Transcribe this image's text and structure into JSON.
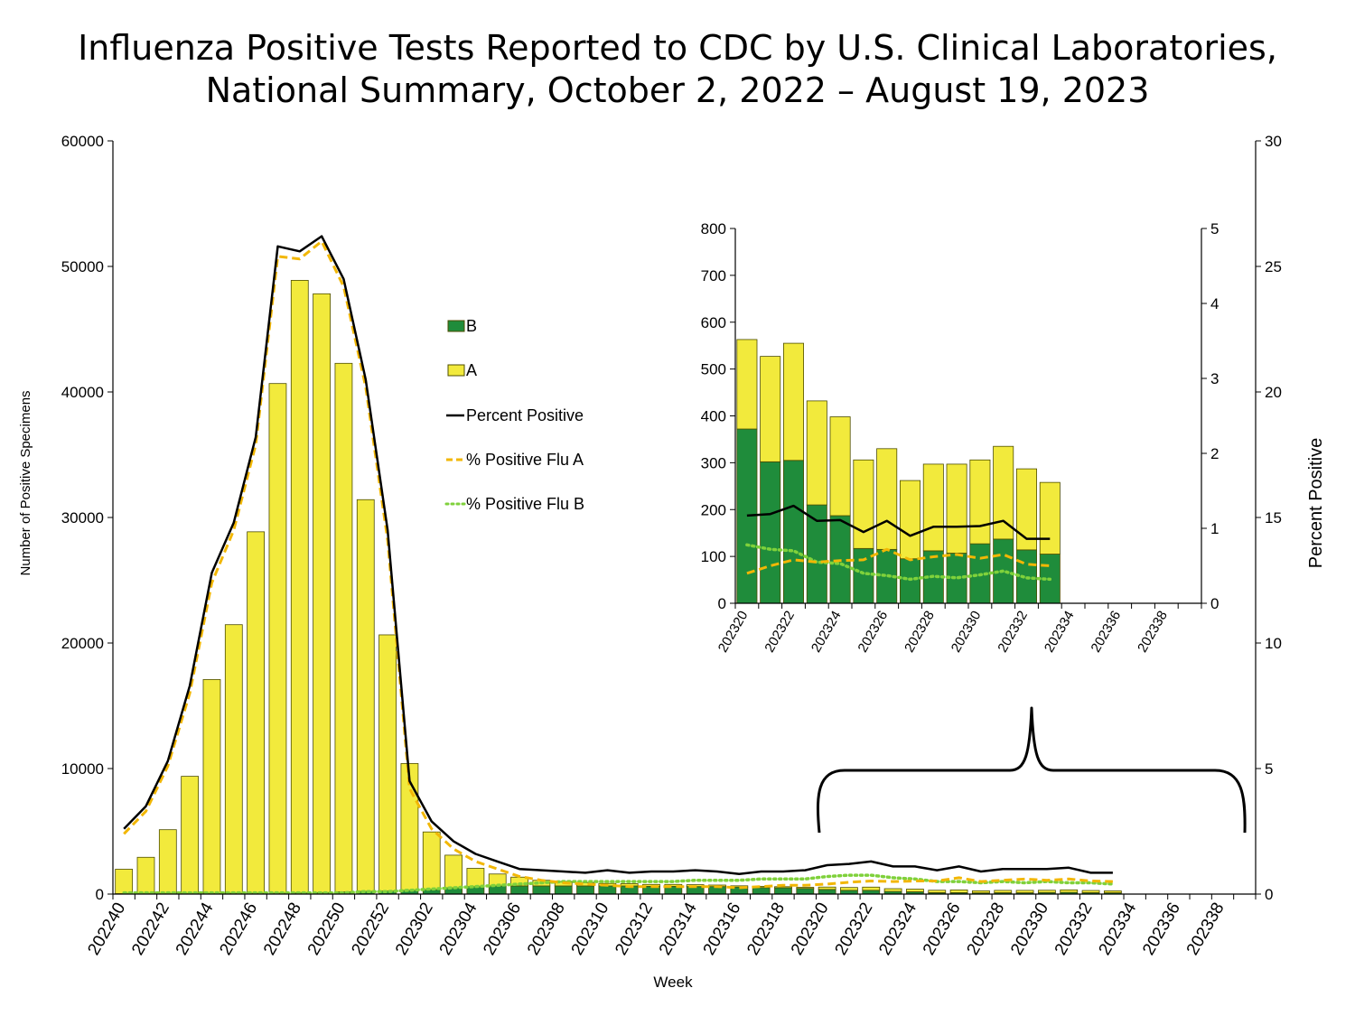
{
  "title": {
    "line1": "Influenza Positive Tests Reported to CDC by U.S. Clinical Laboratories,",
    "line2": "National Summary, October 2, 2022 – August 19, 2023"
  },
  "colors": {
    "flu_a_bar": "#f2ea3c",
    "flu_b_bar": "#1f8c3b",
    "bar_outline": "#4d4d00",
    "percent_positive": "#000000",
    "pct_flu_a": "#f2b705",
    "pct_flu_b": "#7fd13b"
  },
  "chart_data": [
    {
      "type": "bar",
      "stacked": true,
      "title": "",
      "xlabel": "Week",
      "ylabel": "Number of Positive Specimens",
      "y2label": "Percent Positive",
      "ylim": [
        0,
        60000
      ],
      "y2lim": [
        0,
        30
      ],
      "yticks": [
        "0",
        "10000",
        "20000",
        "30000",
        "40000",
        "50000",
        "60000"
      ],
      "y2ticks": [
        "0",
        "5",
        "10",
        "15",
        "20",
        "25",
        "30"
      ],
      "categories": [
        "202240",
        "202241",
        "202242",
        "202243",
        "202244",
        "202245",
        "202246",
        "202247",
        "202248",
        "202249",
        "202250",
        "202251",
        "202252",
        "202301",
        "202302",
        "202303",
        "202304",
        "202305",
        "202306",
        "202307",
        "202308",
        "202309",
        "202310",
        "202311",
        "202312",
        "202313",
        "202314",
        "202315",
        "202316",
        "202317",
        "202318",
        "202319",
        "202320",
        "202321",
        "202322",
        "202323",
        "202324",
        "202325",
        "202326",
        "202327",
        "202328",
        "202329",
        "202330",
        "202331",
        "202332",
        "202333",
        "202334",
        "202335",
        "202336",
        "202337",
        "202338",
        "202339"
      ],
      "tick_labels": [
        "202240",
        "202242",
        "202244",
        "202246",
        "202248",
        "202250",
        "202252",
        "202302",
        "202304",
        "202306",
        "202308",
        "202310",
        "202312",
        "202314",
        "202316",
        "202318",
        "202320",
        "202322",
        "202324",
        "202326",
        "202328",
        "202330",
        "202332",
        "202334",
        "202336",
        "202338"
      ],
      "series": [
        {
          "name": "B",
          "axis": "left",
          "render": "bar",
          "values": [
            30,
            30,
            30,
            30,
            40,
            60,
            60,
            70,
            90,
            120,
            180,
            220,
            250,
            300,
            350,
            500,
            600,
            650,
            650,
            650,
            650,
            650,
            650,
            650,
            620,
            620,
            600,
            600,
            560,
            520,
            500,
            450,
            370,
            300,
            300,
            210,
            185,
            115,
            115,
            95,
            110,
            105,
            125,
            135,
            115,
            105,
            null,
            null,
            null,
            null,
            null,
            null
          ]
        },
        {
          "name": "A",
          "axis": "left",
          "render": "bar",
          "values": [
            1950,
            2900,
            5100,
            9350,
            17050,
            21400,
            28800,
            40600,
            48800,
            47700,
            42100,
            31200,
            20400,
            10100,
            4600,
            2600,
            1450,
            950,
            700,
            450,
            350,
            250,
            200,
            180,
            150,
            150,
            150,
            120,
            100,
            100,
            90,
            90,
            190,
            225,
            255,
            220,
            210,
            190,
            215,
            165,
            185,
            190,
            180,
            200,
            170,
            150,
            null,
            null,
            null,
            null,
            null,
            null
          ]
        },
        {
          "name": "Percent Positive",
          "axis": "right",
          "render": "line",
          "values": [
            2.6,
            3.5,
            5.3,
            8.3,
            12.8,
            14.8,
            18.2,
            25.8,
            25.6,
            26.2,
            24.5,
            20.5,
            14.5,
            4.5,
            2.9,
            2.1,
            1.6,
            1.3,
            1.0,
            0.95,
            0.9,
            0.85,
            0.95,
            0.85,
            0.9,
            0.9,
            0.95,
            0.9,
            0.8,
            0.9,
            0.9,
            0.95,
            1.15,
            1.2,
            1.3,
            1.1,
            1.1,
            0.95,
            1.1,
            0.9,
            1.0,
            1.0,
            1.0,
            1.05,
            0.85,
            0.85,
            null,
            null,
            null,
            null,
            null,
            null
          ]
        },
        {
          "name": "% Positive Flu A",
          "axis": "right",
          "render": "line",
          "values": [
            2.4,
            3.3,
            5.1,
            8.0,
            12.4,
            14.5,
            17.9,
            25.4,
            25.3,
            26.0,
            24.2,
            20.2,
            14.1,
            4.2,
            2.6,
            1.8,
            1.3,
            1.0,
            0.7,
            0.55,
            0.45,
            0.4,
            0.35,
            0.3,
            0.3,
            0.3,
            0.3,
            0.3,
            0.25,
            0.3,
            0.35,
            0.35,
            0.4,
            0.47,
            0.52,
            0.5,
            0.52,
            0.52,
            0.65,
            0.5,
            0.55,
            0.6,
            0.55,
            0.6,
            0.52,
            0.5,
            null,
            null,
            null,
            null,
            null,
            null
          ]
        },
        {
          "name": "% Positive Flu B",
          "axis": "right",
          "render": "line",
          "values": [
            0.05,
            0.05,
            0.05,
            0.05,
            0.05,
            0.05,
            0.05,
            0.05,
            0.05,
            0.05,
            0.05,
            0.1,
            0.1,
            0.15,
            0.2,
            0.25,
            0.3,
            0.35,
            0.4,
            0.45,
            0.5,
            0.5,
            0.5,
            0.5,
            0.5,
            0.5,
            0.55,
            0.55,
            0.55,
            0.6,
            0.6,
            0.6,
            0.7,
            0.75,
            0.75,
            0.65,
            0.6,
            0.5,
            0.5,
            0.45,
            0.5,
            0.45,
            0.5,
            0.45,
            0.45,
            0.4,
            null,
            null,
            null,
            null,
            null,
            null
          ]
        }
      ],
      "legend": {
        "placement": "center",
        "entries": [
          "B",
          "A",
          "Percent Positive",
          "% Positive Flu A",
          "% Positive Flu B"
        ]
      },
      "annotation": "brace highlighting weeks 202320–202339, expanded in inset"
    },
    {
      "type": "bar",
      "stacked": true,
      "title": "",
      "xlabel": "",
      "ylabel": "",
      "ylim": [
        0,
        800
      ],
      "y2lim": [
        0,
        5
      ],
      "yticks": [
        "0",
        "100",
        "200",
        "300",
        "400",
        "500",
        "600",
        "700",
        "800"
      ],
      "y2ticks": [
        "0",
        "1",
        "2",
        "3",
        "4",
        "5"
      ],
      "categories": [
        "202320",
        "202321",
        "202322",
        "202323",
        "202324",
        "202325",
        "202326",
        "202327",
        "202328",
        "202329",
        "202330",
        "202331",
        "202332",
        "202333",
        "202334",
        "202335",
        "202336",
        "202337",
        "202338",
        "202339"
      ],
      "tick_labels": [
        "202320",
        "202322",
        "202324",
        "202326",
        "202328",
        "202330",
        "202332",
        "202334",
        "202336",
        "202338"
      ],
      "series": [
        {
          "name": "B",
          "axis": "left",
          "render": "bar",
          "values": [
            372,
            302,
            305,
            210,
            187,
            117,
            115,
            95,
            112,
            107,
            127,
            137,
            114,
            105,
            null,
            null,
            null,
            null,
            null,
            null
          ]
        },
        {
          "name": "A",
          "axis": "left",
          "render": "bar",
          "values": [
            191,
            225,
            250,
            222,
            211,
            189,
            215,
            167,
            185,
            190,
            179,
            198,
            173,
            153,
            null,
            null,
            null,
            null,
            null,
            null
          ]
        },
        {
          "name": "Percent Positive",
          "axis": "right",
          "render": "line",
          "values": [
            1.17,
            1.19,
            1.3,
            1.1,
            1.11,
            0.95,
            1.1,
            0.9,
            1.02,
            1.02,
            1.03,
            1.1,
            0.86,
            0.86,
            null,
            null,
            null,
            null,
            null,
            null
          ]
        },
        {
          "name": "% Positive Flu A",
          "axis": "right",
          "render": "line",
          "values": [
            0.4,
            0.5,
            0.58,
            0.55,
            0.57,
            0.58,
            0.72,
            0.58,
            0.62,
            0.65,
            0.6,
            0.65,
            0.52,
            0.5,
            null,
            null,
            null,
            null,
            null,
            null
          ]
        },
        {
          "name": "% Positive Flu B",
          "axis": "right",
          "render": "line",
          "values": [
            0.78,
            0.72,
            0.7,
            0.55,
            0.53,
            0.4,
            0.37,
            0.32,
            0.36,
            0.34,
            0.38,
            0.43,
            0.34,
            0.32,
            null,
            null,
            null,
            null,
            null,
            null
          ]
        }
      ]
    }
  ]
}
